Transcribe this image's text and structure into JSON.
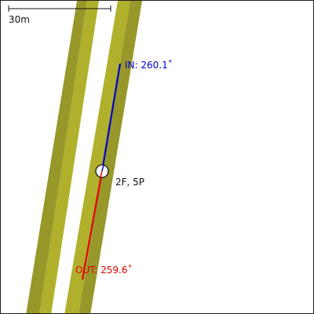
{
  "scale_bar": {
    "label": "30m"
  },
  "node": {
    "label": "2F, 5P"
  },
  "incoming": {
    "label": "IN: 260.1˚",
    "color": "#0000cc"
  },
  "outgoing": {
    "label": "OUT: 259.6˚",
    "color": "#e00000"
  },
  "road_colors": {
    "dark": "#97972a",
    "light": "#b0b02c"
  },
  "colors": {
    "border": "#222222",
    "background": "#ffffff"
  }
}
